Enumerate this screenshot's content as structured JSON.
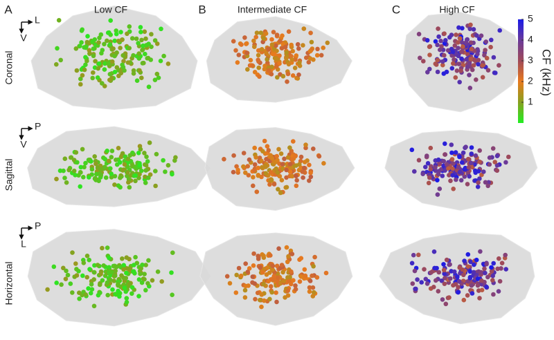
{
  "panels": [
    "A",
    "B",
    "C"
  ],
  "column_titles": [
    "Low CF",
    "Intermediate CF",
    "High CF"
  ],
  "row_labels": [
    "Coronal",
    "Sagittal",
    "Horizontal"
  ],
  "orientation": [
    {
      "x": "L",
      "y": "V"
    },
    {
      "x": "P",
      "y": "V"
    },
    {
      "x": "P",
      "y": "L"
    }
  ],
  "colorbar": {
    "label": "CF (kHz)",
    "lim": [
      0,
      5
    ],
    "ticks": [
      1,
      2,
      3,
      4,
      5
    ]
  }
}
